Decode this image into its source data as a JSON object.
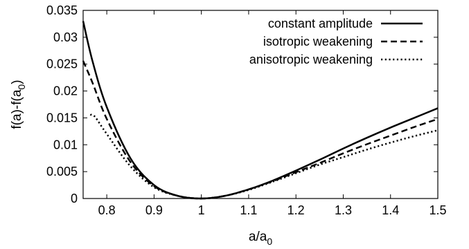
{
  "chart_data": {
    "type": "line",
    "xlabel": {
      "main": "a/a",
      "sub": "0"
    },
    "ylabel": {
      "main": "f(a)-f(a",
      "sub": "0",
      "tail": ")"
    },
    "xlim": [
      0.75,
      1.5
    ],
    "ylim": [
      0,
      0.035
    ],
    "xticks": [
      "0.8",
      "0.9",
      "1",
      "1.1",
      "1.2",
      "1.3",
      "1.4",
      "1.5"
    ],
    "yticks": [
      "0",
      "0.005",
      "0.01",
      "0.015",
      "0.02",
      "0.025",
      "0.03",
      "0.035"
    ],
    "legend_position": "top-right",
    "grid": false,
    "series": [
      {
        "name": "constant amplitude",
        "style": "solid",
        "color": "#000000",
        "x": [
          0.75,
          0.77,
          0.8,
          0.85,
          0.9,
          0.95,
          1.0,
          1.05,
          1.1,
          1.15,
          1.2,
          1.25,
          1.3,
          1.35,
          1.4,
          1.45,
          1.5
        ],
        "y": [
          0.033,
          0.0255,
          0.017,
          0.0075,
          0.0025,
          0.0005,
          0.0,
          0.0005,
          0.0017,
          0.0033,
          0.0052,
          0.0072,
          0.0093,
          0.0113,
          0.0132,
          0.015,
          0.0168
        ]
      },
      {
        "name": "isotropic weakening",
        "style": "dashed",
        "color": "#000000",
        "x": [
          0.75,
          0.77,
          0.8,
          0.85,
          0.9,
          0.95,
          1.0,
          1.05,
          1.1,
          1.15,
          1.2,
          1.25,
          1.3,
          1.35,
          1.4,
          1.45,
          1.5
        ],
        "y": [
          0.0256,
          0.0215,
          0.0148,
          0.0068,
          0.0023,
          0.0005,
          0.0,
          0.0005,
          0.0017,
          0.0032,
          0.0049,
          0.0066,
          0.0084,
          0.0101,
          0.0117,
          0.0133,
          0.0148
        ]
      },
      {
        "name": "anisotropic weakening",
        "style": "dotted",
        "color": "#000000",
        "x": [
          0.765,
          0.775,
          0.8,
          0.85,
          0.9,
          0.95,
          1.0,
          1.05,
          1.1,
          1.15,
          1.2,
          1.25,
          1.3,
          1.35,
          1.4,
          1.45,
          1.5
        ],
        "y": [
          0.0156,
          0.0152,
          0.012,
          0.006,
          0.0021,
          0.0005,
          0.0,
          0.0005,
          0.0016,
          0.0031,
          0.0047,
          0.0063,
          0.0077,
          0.0091,
          0.0104,
          0.0116,
          0.0127
        ]
      }
    ]
  }
}
